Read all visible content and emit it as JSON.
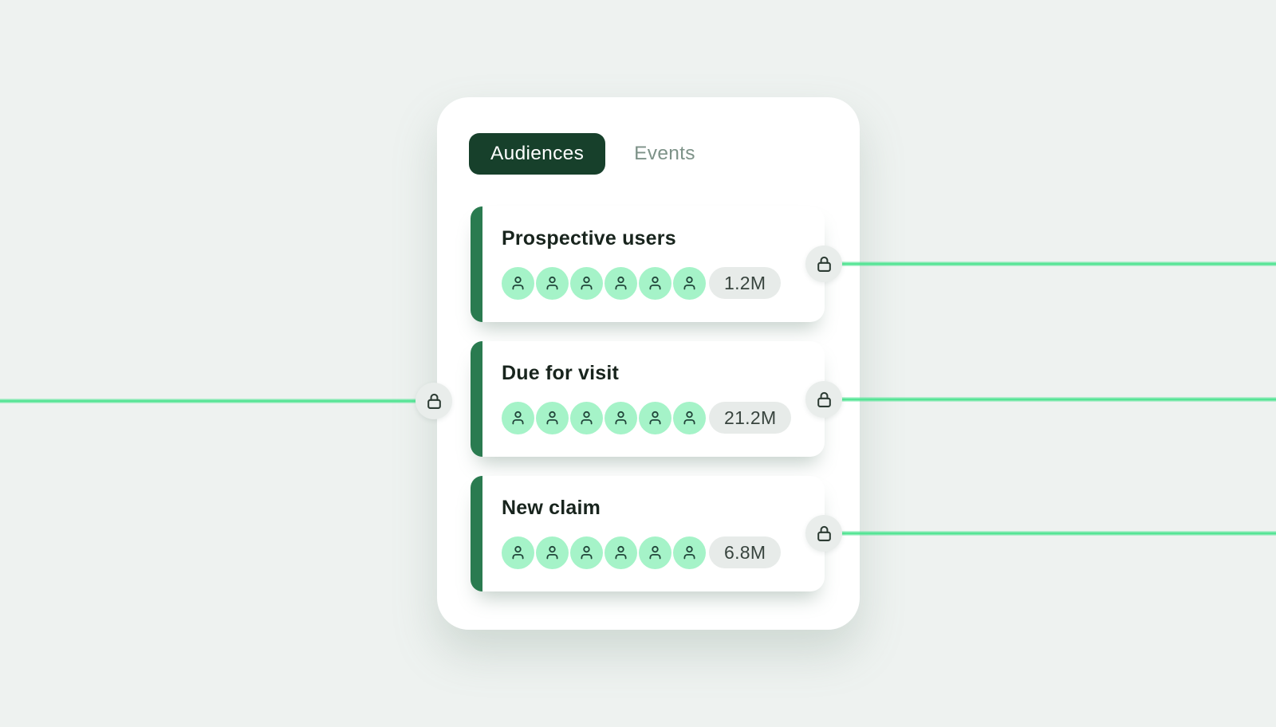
{
  "tabs": {
    "audiences": "Audiences",
    "events": "Events"
  },
  "cards": [
    {
      "title": "Prospective users",
      "count": "1.2M"
    },
    {
      "title": "Due for visit",
      "count": "21.2M"
    },
    {
      "title": "New claim",
      "count": "6.8M"
    }
  ],
  "avatars_per_card": 6,
  "icons": {
    "avatar": "person-icon",
    "node": "lock-icon"
  },
  "colors": {
    "bg": "#EEF2F0",
    "panel": "#FFFFFF",
    "tab-bg": "#17402B",
    "tab-text": "#FFFFFF",
    "tab-inactive": "#7D9288",
    "accent-bar": "#2A7B50",
    "title": "#18241D",
    "avatar-bg": "#A5F3C8",
    "icon-stroke": "#21453A",
    "badge-bg": "#E7EBE9",
    "badge-text": "#38443E",
    "node-bg": "#E9EDEB",
    "lock-stroke": "#2C3B33",
    "line-green": "#4FE492"
  }
}
